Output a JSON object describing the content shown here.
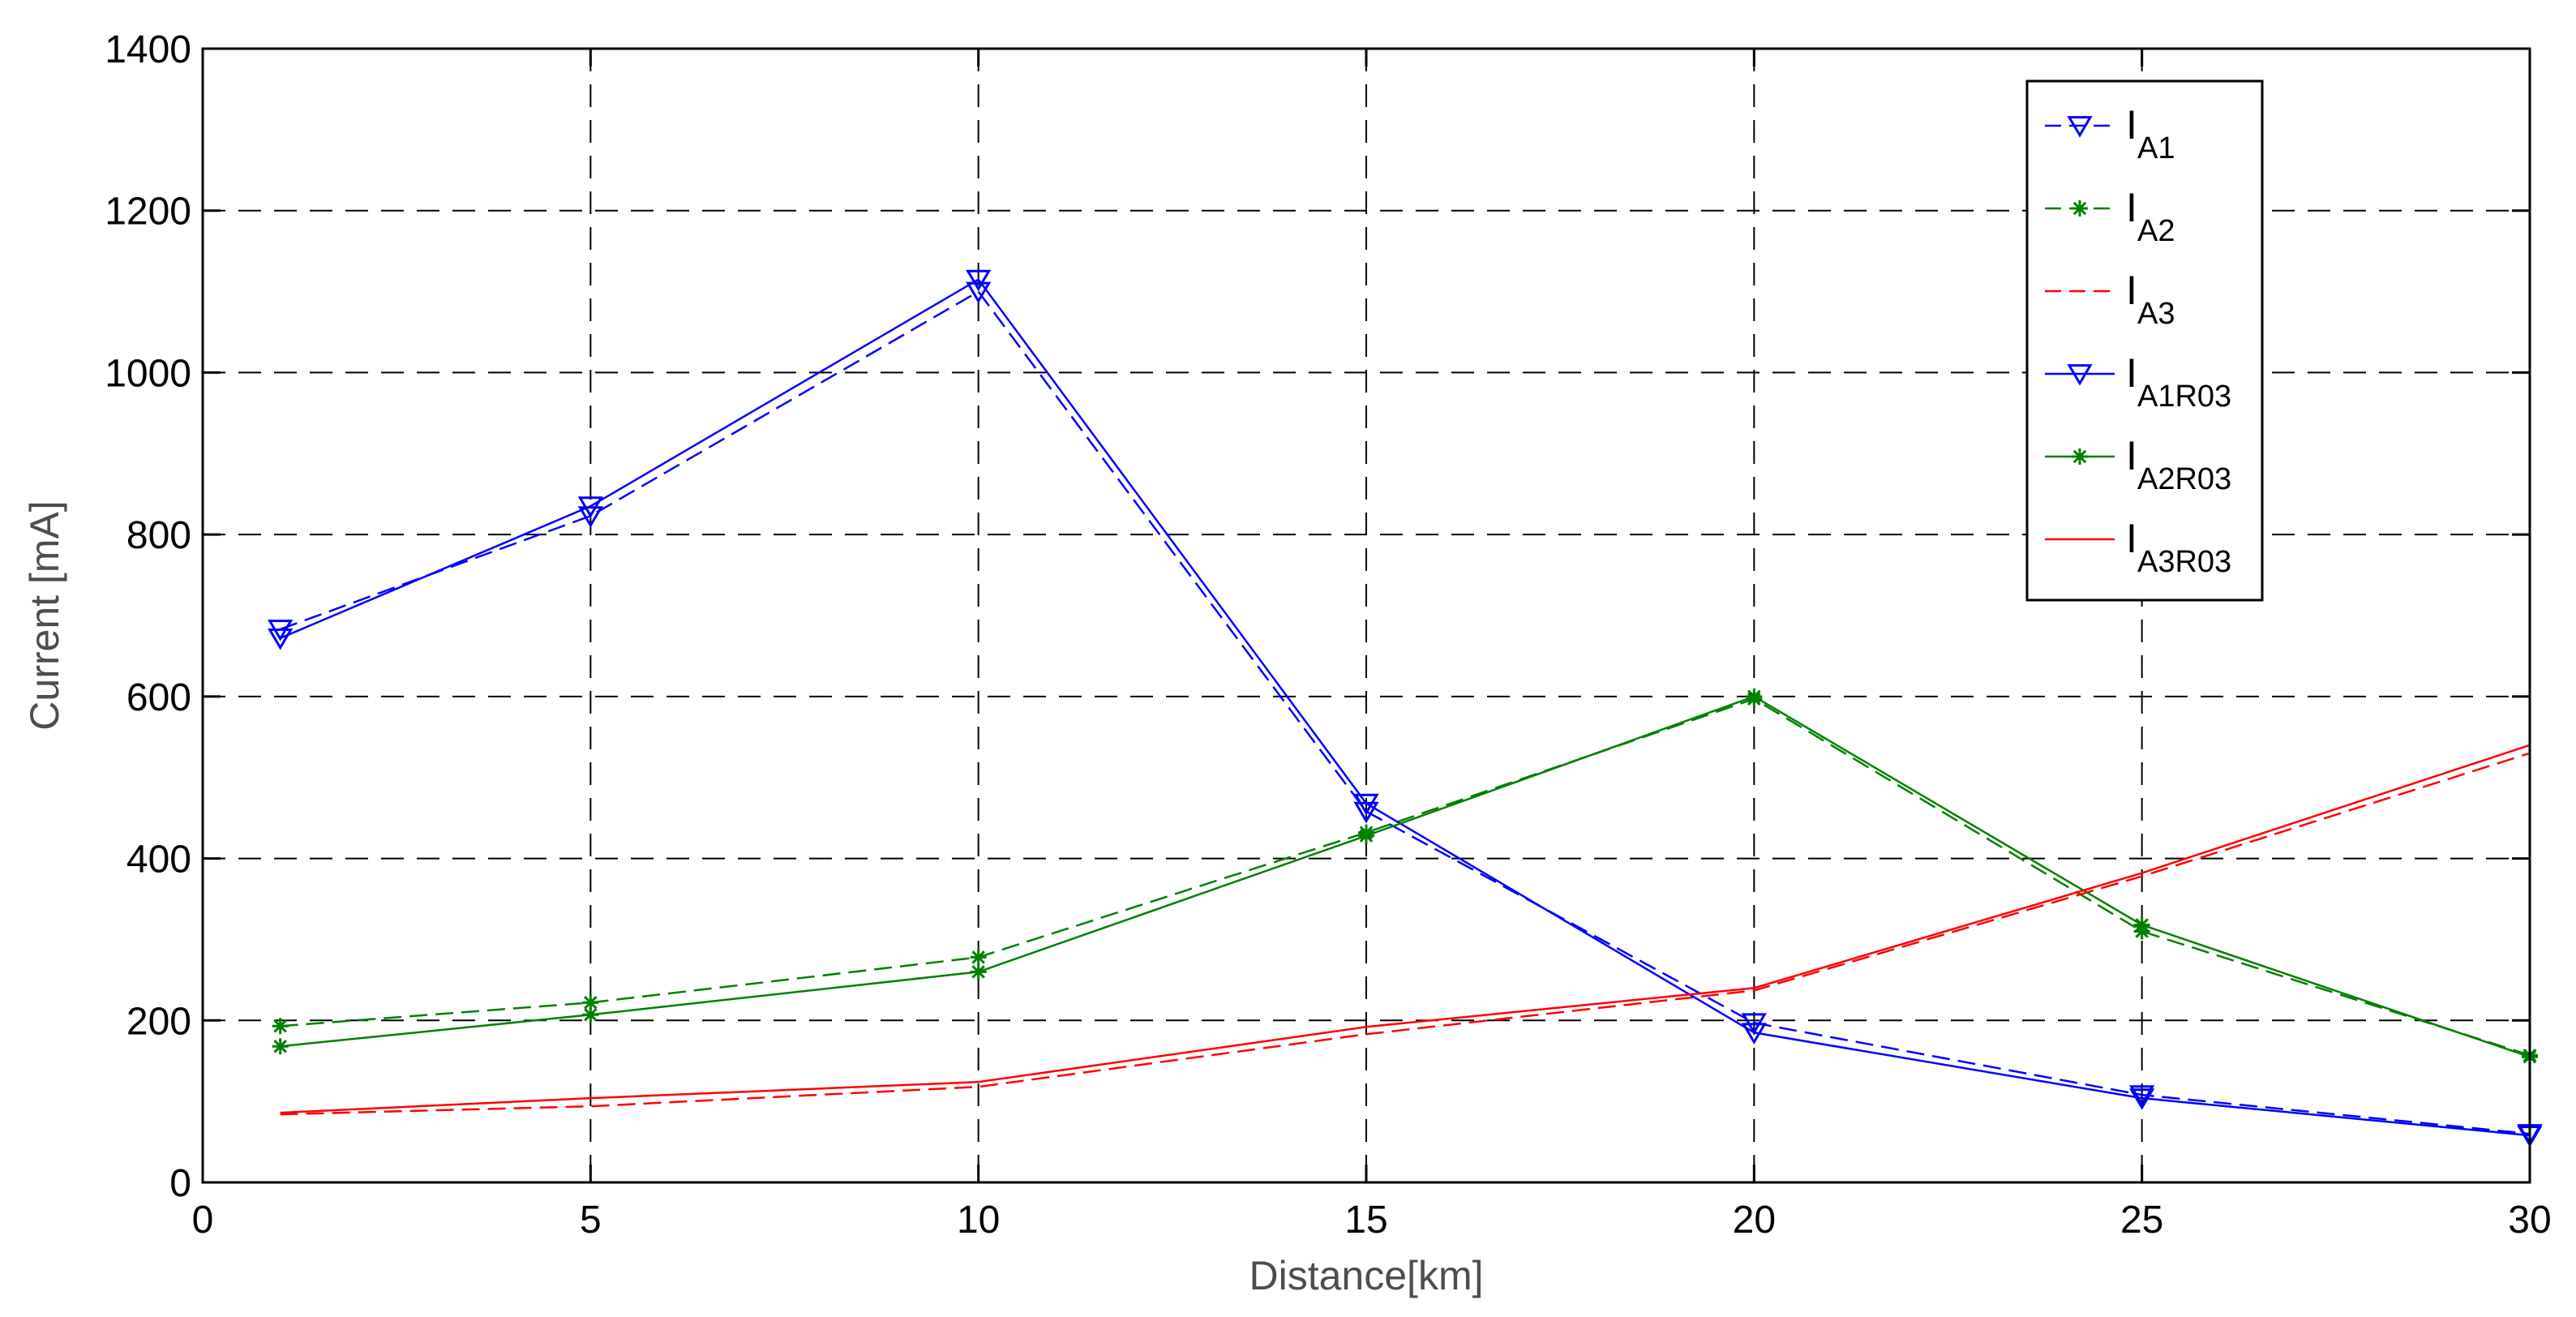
{
  "chart_data": {
    "type": "line",
    "xlabel": "Distance[km]",
    "ylabel": "Current [mA]",
    "xlim": [
      0,
      30
    ],
    "ylim": [
      0,
      1400
    ],
    "xticks": [
      0,
      5,
      10,
      15,
      20,
      25,
      30
    ],
    "yticks": [
      0,
      200,
      400,
      600,
      800,
      1000,
      1200,
      1400
    ],
    "x_tick_labels": [
      "0",
      "5",
      "10",
      "15",
      "20",
      "25",
      "30"
    ],
    "y_tick_labels": [
      "0",
      "200",
      "400",
      "600",
      "800",
      "1000",
      "1200",
      "1400"
    ],
    "grid": true,
    "legend_position": "top-right",
    "x": [
      1,
      5,
      10,
      15,
      20,
      25,
      30
    ],
    "series": [
      {
        "name": "I",
        "subscript": "A1",
        "color": "#0000ff",
        "marker": "triangle-down",
        "line_style": "dashed",
        "values": [
          683,
          823,
          1100,
          458,
          197,
          108,
          60
        ]
      },
      {
        "name": "I",
        "subscript": "A2",
        "color": "#008000",
        "marker": "star",
        "line_style": "dashed",
        "values": [
          193,
          222,
          278,
          432,
          597,
          310,
          157
        ]
      },
      {
        "name": "I",
        "subscript": "A3",
        "color": "#ff0000",
        "marker": "none",
        "line_style": "dashed",
        "values": [
          84,
          94,
          118,
          183,
          237,
          378,
          530
        ]
      },
      {
        "name": "I",
        "subscript": "A1R03",
        "color": "#0000ff",
        "marker": "triangle-down",
        "line_style": "solid",
        "values": [
          672,
          835,
          1115,
          468,
          185,
          104,
          58
        ]
      },
      {
        "name": "I",
        "subscript": "A2R03",
        "color": "#008000",
        "marker": "star",
        "line_style": "solid",
        "values": [
          168,
          207,
          260,
          428,
          600,
          318,
          155
        ]
      },
      {
        "name": "I",
        "subscript": "A3R03",
        "color": "#ff0000",
        "marker": "none",
        "line_style": "solid",
        "values": [
          86,
          104,
          124,
          192,
          240,
          382,
          540
        ]
      }
    ]
  }
}
